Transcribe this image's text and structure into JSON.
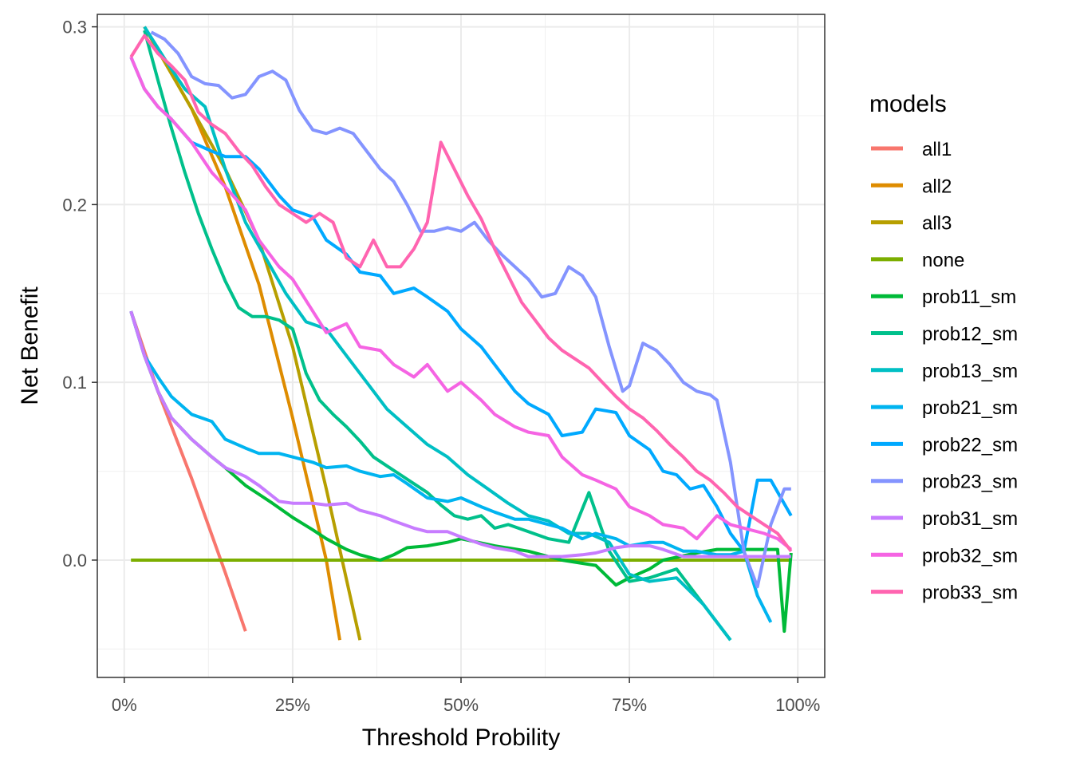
{
  "chart_data": {
    "type": "line",
    "xlabel": "Threshold Probility",
    "ylabel": "Net Benefit",
    "xlim": [
      -0.04,
      1.04
    ],
    "ylim": [
      -0.066,
      0.307
    ],
    "x_ticks": [
      0,
      0.25,
      0.5,
      0.75,
      1.0
    ],
    "x_tick_labels": [
      "0%",
      "25%",
      "50%",
      "75%",
      "100%"
    ],
    "y_ticks": [
      0.0,
      0.1,
      0.2,
      0.3
    ],
    "y_tick_labels": [
      "0.0",
      "0.1",
      "0.2",
      "0.3"
    ],
    "grid": true,
    "legend": {
      "title": "models",
      "position": "right"
    },
    "series": [
      {
        "name": "all1",
        "color": "#F8766D",
        "x": [
          0.01,
          0.05,
          0.1,
          0.15,
          0.18
        ],
        "y": [
          0.14,
          0.095,
          0.046,
          -0.007,
          -0.04
        ]
      },
      {
        "name": "all2",
        "color": "#DE8C00",
        "x": [
          0.03,
          0.1,
          0.15,
          0.2,
          0.25,
          0.3,
          0.32
        ],
        "y": [
          0.3,
          0.254,
          0.21,
          0.155,
          0.08,
          0.0,
          -0.045
        ]
      },
      {
        "name": "all3",
        "color": "#B79F00",
        "x": [
          0.03,
          0.1,
          0.15,
          0.2,
          0.25,
          0.3,
          0.35
        ],
        "y": [
          0.3,
          0.254,
          0.22,
          0.18,
          0.12,
          0.04,
          -0.045
        ]
      },
      {
        "name": "none",
        "color": "#7CAE00",
        "x": [
          0.01,
          0.99
        ],
        "y": [
          0.0,
          0.0
        ]
      },
      {
        "name": "prob11_sm",
        "color": "#00BA38",
        "x": [
          0.01,
          0.03,
          0.05,
          0.07,
          0.1,
          0.13,
          0.15,
          0.18,
          0.2,
          0.22,
          0.25,
          0.28,
          0.3,
          0.33,
          0.35,
          0.38,
          0.4,
          0.42,
          0.45,
          0.48,
          0.5,
          0.55,
          0.6,
          0.65,
          0.7,
          0.73,
          0.75,
          0.78,
          0.8,
          0.85,
          0.88,
          0.9,
          0.92,
          0.95,
          0.97,
          0.98,
          0.99
        ],
        "y": [
          0.14,
          0.115,
          0.095,
          0.08,
          0.068,
          0.058,
          0.052,
          0.042,
          0.037,
          0.032,
          0.024,
          0.017,
          0.012,
          0.006,
          0.003,
          0.0,
          0.003,
          0.007,
          0.008,
          0.01,
          0.012,
          0.008,
          0.005,
          0.0,
          -0.003,
          -0.014,
          -0.01,
          -0.005,
          0.0,
          0.004,
          0.006,
          0.006,
          0.006,
          0.006,
          0.006,
          -0.04,
          0.004
        ]
      },
      {
        "name": "prob12_sm",
        "color": "#00C08B",
        "x": [
          0.03,
          0.05,
          0.07,
          0.09,
          0.11,
          0.13,
          0.15,
          0.17,
          0.19,
          0.21,
          0.23,
          0.25,
          0.27,
          0.29,
          0.31,
          0.33,
          0.35,
          0.37,
          0.39,
          0.41,
          0.43,
          0.45,
          0.47,
          0.49,
          0.51,
          0.53,
          0.55,
          0.57,
          0.6,
          0.63,
          0.66,
          0.69,
          0.72,
          0.75,
          0.78,
          0.82,
          0.86,
          0.9
        ],
        "y": [
          0.298,
          0.27,
          0.243,
          0.218,
          0.195,
          0.175,
          0.157,
          0.142,
          0.137,
          0.137,
          0.135,
          0.13,
          0.105,
          0.09,
          0.082,
          0.075,
          0.067,
          0.058,
          0.053,
          0.048,
          0.043,
          0.038,
          0.031,
          0.025,
          0.023,
          0.025,
          0.018,
          0.02,
          0.016,
          0.012,
          0.01,
          0.038,
          0.005,
          -0.012,
          -0.01,
          -0.005,
          -0.025,
          -0.045
        ]
      },
      {
        "name": "prob13_sm",
        "color": "#00BFC4",
        "x": [
          0.03,
          0.06,
          0.09,
          0.12,
          0.15,
          0.18,
          0.21,
          0.24,
          0.27,
          0.3,
          0.33,
          0.36,
          0.39,
          0.42,
          0.45,
          0.48,
          0.51,
          0.54,
          0.57,
          0.6,
          0.63,
          0.66,
          0.69,
          0.72,
          0.75,
          0.78,
          0.82,
          0.86,
          0.9
        ],
        "y": [
          0.3,
          0.282,
          0.265,
          0.255,
          0.22,
          0.19,
          0.17,
          0.15,
          0.134,
          0.13,
          0.115,
          0.1,
          0.085,
          0.075,
          0.065,
          0.058,
          0.048,
          0.04,
          0.032,
          0.025,
          0.022,
          0.015,
          0.015,
          0.01,
          -0.008,
          -0.012,
          -0.01,
          -0.025,
          -0.045
        ]
      },
      {
        "name": "prob21_sm",
        "color": "#00B4F0",
        "x": [
          0.01,
          0.03,
          0.05,
          0.07,
          0.1,
          0.13,
          0.15,
          0.18,
          0.2,
          0.23,
          0.25,
          0.28,
          0.3,
          0.33,
          0.35,
          0.38,
          0.4,
          0.42,
          0.45,
          0.48,
          0.5,
          0.53,
          0.55,
          0.58,
          0.6,
          0.63,
          0.65,
          0.68,
          0.7,
          0.73,
          0.75,
          0.78,
          0.8,
          0.83,
          0.85,
          0.88,
          0.9,
          0.92,
          0.94,
          0.96
        ],
        "y": [
          0.14,
          0.115,
          0.103,
          0.092,
          0.082,
          0.078,
          0.068,
          0.063,
          0.06,
          0.06,
          0.058,
          0.055,
          0.052,
          0.053,
          0.05,
          0.047,
          0.048,
          0.043,
          0.035,
          0.033,
          0.035,
          0.03,
          0.027,
          0.023,
          0.023,
          0.02,
          0.018,
          0.012,
          0.015,
          0.012,
          0.008,
          0.01,
          0.01,
          0.005,
          0.005,
          0.003,
          0.003,
          0.005,
          -0.02,
          -0.035
        ]
      },
      {
        "name": "prob22_sm",
        "color": "#00A9FF",
        "x": [
          0.01,
          0.03,
          0.05,
          0.07,
          0.1,
          0.13,
          0.15,
          0.18,
          0.2,
          0.23,
          0.25,
          0.28,
          0.3,
          0.33,
          0.35,
          0.38,
          0.4,
          0.43,
          0.45,
          0.48,
          0.5,
          0.53,
          0.55,
          0.58,
          0.6,
          0.63,
          0.65,
          0.68,
          0.7,
          0.73,
          0.75,
          0.78,
          0.8,
          0.82,
          0.84,
          0.86,
          0.88,
          0.9,
          0.92,
          0.94,
          0.96,
          0.99
        ],
        "y": [
          0.283,
          0.265,
          0.255,
          0.248,
          0.235,
          0.23,
          0.227,
          0.227,
          0.22,
          0.205,
          0.197,
          0.193,
          0.18,
          0.172,
          0.162,
          0.16,
          0.15,
          0.153,
          0.148,
          0.14,
          0.13,
          0.12,
          0.11,
          0.095,
          0.088,
          0.082,
          0.07,
          0.072,
          0.085,
          0.083,
          0.07,
          0.062,
          0.05,
          0.048,
          0.04,
          0.042,
          0.03,
          0.015,
          0.005,
          0.045,
          0.045,
          0.025
        ]
      },
      {
        "name": "prob23_sm",
        "color": "#8494FF",
        "x": [
          0.04,
          0.06,
          0.08,
          0.1,
          0.12,
          0.14,
          0.16,
          0.18,
          0.2,
          0.22,
          0.24,
          0.26,
          0.28,
          0.3,
          0.32,
          0.34,
          0.36,
          0.38,
          0.4,
          0.42,
          0.44,
          0.46,
          0.48,
          0.5,
          0.52,
          0.54,
          0.56,
          0.58,
          0.6,
          0.62,
          0.64,
          0.66,
          0.68,
          0.7,
          0.72,
          0.74,
          0.75,
          0.77,
          0.79,
          0.81,
          0.83,
          0.85,
          0.87,
          0.88,
          0.9,
          0.92,
          0.94,
          0.96,
          0.98,
          0.99
        ],
        "y": [
          0.297,
          0.293,
          0.285,
          0.272,
          0.268,
          0.267,
          0.26,
          0.262,
          0.272,
          0.275,
          0.27,
          0.253,
          0.242,
          0.24,
          0.243,
          0.24,
          0.23,
          0.22,
          0.213,
          0.2,
          0.185,
          0.185,
          0.187,
          0.185,
          0.19,
          0.18,
          0.172,
          0.165,
          0.158,
          0.148,
          0.15,
          0.165,
          0.16,
          0.148,
          0.12,
          0.095,
          0.098,
          0.122,
          0.118,
          0.11,
          0.1,
          0.095,
          0.093,
          0.09,
          0.055,
          0.005,
          -0.015,
          0.02,
          0.04,
          0.04
        ]
      },
      {
        "name": "prob31_sm",
        "color": "#C77CFF",
        "x": [
          0.01,
          0.03,
          0.05,
          0.07,
          0.1,
          0.13,
          0.15,
          0.18,
          0.2,
          0.23,
          0.25,
          0.28,
          0.3,
          0.33,
          0.35,
          0.38,
          0.4,
          0.43,
          0.45,
          0.48,
          0.5,
          0.53,
          0.55,
          0.58,
          0.6,
          0.63,
          0.65,
          0.68,
          0.7,
          0.73,
          0.75,
          0.78,
          0.8,
          0.83,
          0.85,
          0.88,
          0.9,
          0.93,
          0.95,
          0.99
        ],
        "y": [
          0.14,
          0.115,
          0.095,
          0.08,
          0.068,
          0.058,
          0.052,
          0.047,
          0.042,
          0.033,
          0.032,
          0.032,
          0.031,
          0.032,
          0.028,
          0.025,
          0.022,
          0.018,
          0.016,
          0.016,
          0.013,
          0.009,
          0.007,
          0.005,
          0.002,
          0.002,
          0.002,
          0.003,
          0.004,
          0.007,
          0.008,
          0.008,
          0.006,
          0.002,
          0.002,
          0.002,
          0.002,
          0.002,
          0.002,
          0.002
        ]
      },
      {
        "name": "prob32_sm",
        "color": "#F564E3",
        "x": [
          0.01,
          0.03,
          0.05,
          0.07,
          0.1,
          0.13,
          0.15,
          0.18,
          0.2,
          0.23,
          0.25,
          0.28,
          0.3,
          0.33,
          0.35,
          0.38,
          0.4,
          0.43,
          0.45,
          0.48,
          0.5,
          0.53,
          0.55,
          0.58,
          0.6,
          0.63,
          0.65,
          0.68,
          0.7,
          0.73,
          0.75,
          0.78,
          0.8,
          0.83,
          0.85,
          0.88,
          0.9,
          0.92,
          0.95,
          0.97,
          0.99
        ],
        "y": [
          0.283,
          0.265,
          0.255,
          0.248,
          0.235,
          0.218,
          0.21,
          0.197,
          0.18,
          0.165,
          0.158,
          0.14,
          0.128,
          0.133,
          0.12,
          0.118,
          0.11,
          0.103,
          0.11,
          0.095,
          0.1,
          0.09,
          0.082,
          0.075,
          0.072,
          0.07,
          0.058,
          0.048,
          0.045,
          0.04,
          0.03,
          0.025,
          0.02,
          0.018,
          0.012,
          0.025,
          0.02,
          0.018,
          0.015,
          0.012,
          0.006
        ]
      },
      {
        "name": "prob33_sm",
        "color": "#FF64B0",
        "x": [
          0.01,
          0.03,
          0.05,
          0.07,
          0.09,
          0.11,
          0.13,
          0.15,
          0.17,
          0.19,
          0.21,
          0.23,
          0.25,
          0.27,
          0.29,
          0.31,
          0.33,
          0.35,
          0.37,
          0.39,
          0.41,
          0.43,
          0.45,
          0.47,
          0.49,
          0.51,
          0.53,
          0.55,
          0.57,
          0.59,
          0.61,
          0.63,
          0.65,
          0.67,
          0.69,
          0.71,
          0.73,
          0.75,
          0.77,
          0.79,
          0.81,
          0.83,
          0.85,
          0.87,
          0.89,
          0.91,
          0.93,
          0.95,
          0.97,
          0.99
        ],
        "y": [
          0.283,
          0.295,
          0.285,
          0.278,
          0.27,
          0.252,
          0.245,
          0.24,
          0.23,
          0.222,
          0.21,
          0.2,
          0.195,
          0.19,
          0.195,
          0.19,
          0.17,
          0.165,
          0.18,
          0.165,
          0.165,
          0.175,
          0.19,
          0.235,
          0.22,
          0.205,
          0.192,
          0.175,
          0.16,
          0.145,
          0.135,
          0.125,
          0.118,
          0.113,
          0.108,
          0.1,
          0.092,
          0.085,
          0.08,
          0.073,
          0.065,
          0.058,
          0.05,
          0.045,
          0.038,
          0.03,
          0.025,
          0.02,
          0.015,
          0.005
        ]
      }
    ]
  }
}
